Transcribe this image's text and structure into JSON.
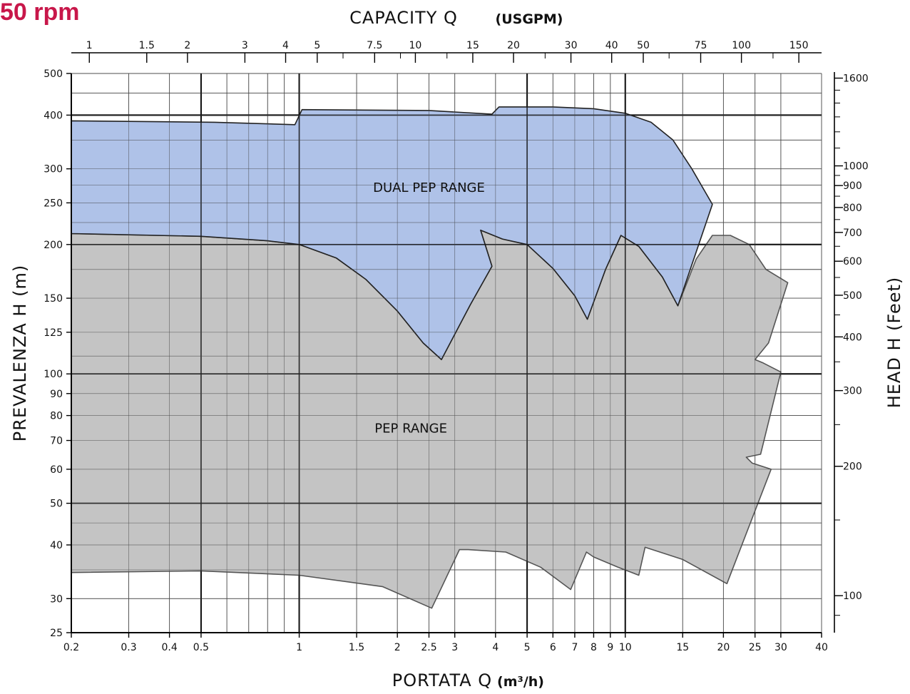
{
  "page_title": "50 rpm",
  "chart_data": {
    "type": "area",
    "title": "50 rpm",
    "x_scale": "log",
    "y_scale": "log",
    "xlabel_bottom": "PORTATA  Q",
    "xlabel_bottom_unit": "(m³/h)",
    "xlabel_top": "CAPACITY  Q",
    "xlabel_top_unit": "(USGPM)",
    "ylabel_left": "PREVALENZA  H  (m)",
    "ylabel_right": "HEAD  H  (Feet)",
    "xlim": [
      0.2,
      40
    ],
    "ylim": [
      25,
      500
    ],
    "x_ticks_bottom": [
      0.2,
      0.3,
      0.4,
      0.5,
      1,
      1.5,
      2,
      2.5,
      3,
      4,
      5,
      6,
      7,
      8,
      9,
      10,
      15,
      20,
      25,
      30,
      40
    ],
    "x_ticks_top_usgpm": [
      1,
      1.5,
      2,
      3,
      4,
      5,
      7.5,
      10,
      15,
      20,
      30,
      40,
      50,
      75,
      100,
      150
    ],
    "y_ticks_left": [
      25,
      30,
      40,
      50,
      60,
      70,
      80,
      90,
      100,
      125,
      150,
      200,
      250,
      300,
      400,
      500
    ],
    "y_ticks_right_feet": [
      100,
      200,
      300,
      400,
      500,
      600,
      700,
      800,
      900,
      1000,
      1600
    ],
    "major_gridlines_x": [
      0.5,
      1,
      5,
      10
    ],
    "major_gridlines_y": [
      50,
      100,
      200,
      400
    ],
    "grid": true,
    "series": [
      {
        "name": "PEP RANGE",
        "color": "#bfbfbf",
        "outline": "#555555",
        "points": [
          [
            0.2,
            212
          ],
          [
            0.5,
            209
          ],
          [
            0.8,
            204
          ],
          [
            1,
            200
          ],
          [
            1.3,
            186
          ],
          [
            1.6,
            166
          ],
          [
            2.0,
            140
          ],
          [
            2.4,
            118
          ],
          [
            2.73,
            108
          ],
          [
            3.35,
            145
          ],
          [
            3.9,
            178
          ],
          [
            3.6,
            216
          ],
          [
            4.2,
            206
          ],
          [
            5,
            200
          ],
          [
            6,
            176
          ],
          [
            7,
            152
          ],
          [
            7.65,
            134
          ],
          [
            8.7,
            175
          ],
          [
            9.7,
            210
          ],
          [
            11,
            198
          ],
          [
            13,
            168
          ],
          [
            14.5,
            144
          ],
          [
            16.5,
            185
          ],
          [
            18.5,
            210
          ],
          [
            21,
            210
          ],
          [
            24,
            200
          ],
          [
            27,
            175
          ],
          [
            31.5,
            163
          ],
          [
            27.5,
            118
          ],
          [
            26,
            112
          ],
          [
            25,
            108
          ],
          [
            26.5,
            106
          ],
          [
            30,
            101
          ],
          [
            26,
            65
          ],
          [
            23.5,
            64
          ],
          [
            24.5,
            62
          ],
          [
            28,
            60
          ],
          [
            20.5,
            32.5
          ],
          [
            15,
            37
          ],
          [
            11.5,
            39.5
          ],
          [
            11,
            34
          ],
          [
            9.5,
            35.5
          ],
          [
            8,
            37.5
          ],
          [
            7.6,
            38.5
          ],
          [
            6.8,
            31.5
          ],
          [
            5.5,
            35.5
          ],
          [
            4.3,
            38.5
          ],
          [
            3.3,
            39
          ],
          [
            3.1,
            39
          ],
          [
            2.55,
            28.5
          ],
          [
            1.8,
            32
          ],
          [
            1,
            34
          ],
          [
            0.5,
            34.8
          ],
          [
            0.2,
            34.5
          ]
        ]
      },
      {
        "name": "DUAL PEP RANGE",
        "color": "#a8bde6",
        "outline": "#222222",
        "points": [
          [
            0.2,
            388
          ],
          [
            0.55,
            385
          ],
          [
            0.97,
            380
          ],
          [
            1.02,
            412
          ],
          [
            2.5,
            410
          ],
          [
            3.9,
            402
          ],
          [
            4.1,
            418
          ],
          [
            6,
            418
          ],
          [
            8,
            414
          ],
          [
            10,
            404
          ],
          [
            12,
            385
          ],
          [
            14,
            350
          ],
          [
            16,
            300
          ],
          [
            18.5,
            248
          ],
          [
            14.5,
            144
          ],
          [
            13,
            168
          ],
          [
            11,
            198
          ],
          [
            9.7,
            210
          ],
          [
            8.7,
            175
          ],
          [
            7.65,
            134
          ],
          [
            7,
            152
          ],
          [
            6,
            176
          ],
          [
            5,
            200
          ],
          [
            4.2,
            206
          ],
          [
            3.6,
            216
          ],
          [
            3.9,
            178
          ],
          [
            3.35,
            145
          ],
          [
            2.73,
            108
          ],
          [
            2.4,
            118
          ],
          [
            2.0,
            140
          ],
          [
            1.6,
            166
          ],
          [
            1.3,
            186
          ],
          [
            1,
            200
          ],
          [
            0.8,
            204
          ],
          [
            0.5,
            209
          ],
          [
            0.2,
            212
          ]
        ]
      }
    ],
    "annotations": [
      {
        "text": "DUAL PEP RANGE",
        "x": 2.5,
        "y": 265
      },
      {
        "text": "PEP RANGE",
        "x": 2.2,
        "y": 73
      }
    ]
  }
}
